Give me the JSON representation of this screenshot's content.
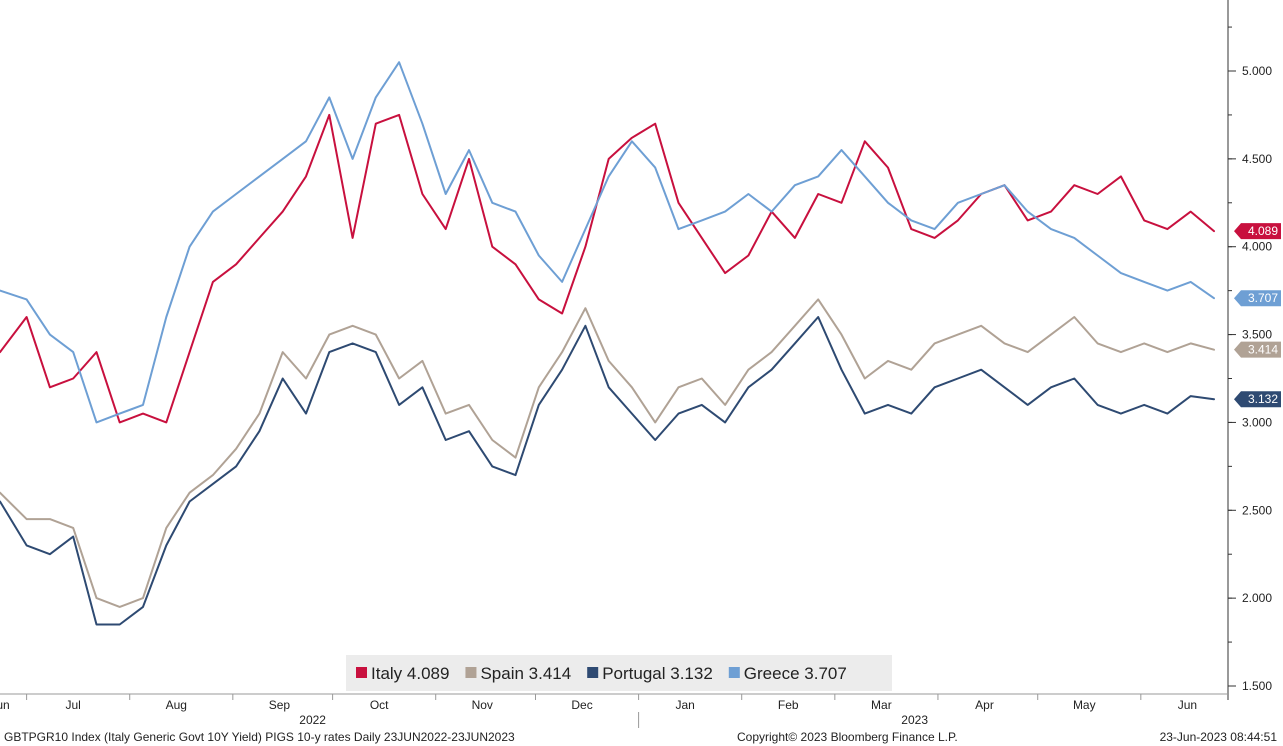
{
  "footer": {
    "description": "GBTPGR10 Index (Italy Generic Govt 10Y Yield) PIGS 10-y rates  Daily 23JUN2022-23JUN2023",
    "copyright": "Copyright© 2023 Bloomberg Finance L.P.",
    "timestamp": "23-Jun-2023 08:44:51"
  },
  "chart_data": {
    "type": "line",
    "title": "",
    "xlabel": "",
    "ylabel": "",
    "x_range": [
      "2022-06-23",
      "2023-06-23"
    ],
    "ylim": [
      1.5,
      5.3
    ],
    "y_ticks": [
      "1.500",
      "2.000",
      "2.500",
      "3.000",
      "3.500",
      "4.000",
      "4.500",
      "5.000"
    ],
    "x_ticks": [
      {
        "label": "Jun",
        "date": "2022-06-23"
      },
      {
        "label": "Jul",
        "date": "2022-07-15"
      },
      {
        "label": "Aug",
        "date": "2022-08-15"
      },
      {
        "label": "Sep",
        "date": "2022-09-15"
      },
      {
        "label": "Oct",
        "date": "2022-10-15"
      },
      {
        "label": "Nov",
        "date": "2022-11-15"
      },
      {
        "label": "Dec",
        "date": "2022-12-15"
      },
      {
        "label": "Jan",
        "date": "2023-01-15"
      },
      {
        "label": "Feb",
        "date": "2023-02-15"
      },
      {
        "label": "Mar",
        "date": "2023-03-15"
      },
      {
        "label": "Apr",
        "date": "2023-04-15"
      },
      {
        "label": "May",
        "date": "2023-05-15"
      },
      {
        "label": "Jun",
        "date": "2023-06-15"
      }
    ],
    "year_labels": [
      {
        "label": "2022",
        "date": "2022-09-25"
      },
      {
        "label": "2023",
        "date": "2023-03-25"
      }
    ],
    "year_divider_date": "2023-01-01",
    "grid": false,
    "legend_position": "bottom-center",
    "dates": [
      "2022-06-23",
      "2022-07-01",
      "2022-07-08",
      "2022-07-15",
      "2022-07-22",
      "2022-07-29",
      "2022-08-05",
      "2022-08-12",
      "2022-08-19",
      "2022-08-26",
      "2022-09-02",
      "2022-09-09",
      "2022-09-16",
      "2022-09-23",
      "2022-09-30",
      "2022-10-07",
      "2022-10-14",
      "2022-10-21",
      "2022-10-28",
      "2022-11-04",
      "2022-11-11",
      "2022-11-18",
      "2022-11-25",
      "2022-12-02",
      "2022-12-09",
      "2022-12-16",
      "2022-12-23",
      "2022-12-30",
      "2023-01-06",
      "2023-01-13",
      "2023-01-20",
      "2023-01-27",
      "2023-02-03",
      "2023-02-10",
      "2023-02-17",
      "2023-02-24",
      "2023-03-03",
      "2023-03-10",
      "2023-03-17",
      "2023-03-24",
      "2023-03-31",
      "2023-04-07",
      "2023-04-14",
      "2023-04-21",
      "2023-04-28",
      "2023-05-05",
      "2023-05-12",
      "2023-05-19",
      "2023-05-26",
      "2023-06-02",
      "2023-06-09",
      "2023-06-16",
      "2023-06-23"
    ],
    "series": [
      {
        "name": "Italy",
        "color": "#c8103e",
        "last": "4.089",
        "values": [
          3.4,
          3.6,
          3.2,
          3.25,
          3.4,
          3.0,
          3.05,
          3.0,
          3.4,
          3.8,
          3.9,
          4.05,
          4.2,
          4.4,
          4.75,
          4.05,
          4.7,
          4.75,
          4.3,
          4.1,
          4.5,
          4.0,
          3.9,
          3.7,
          3.62,
          4.0,
          4.5,
          4.62,
          4.7,
          4.25,
          4.05,
          3.85,
          3.95,
          4.2,
          4.05,
          4.3,
          4.25,
          4.6,
          4.45,
          4.1,
          4.05,
          4.15,
          4.3,
          4.35,
          4.15,
          4.2,
          4.35,
          4.3,
          4.4,
          4.15,
          4.1,
          4.2,
          4.089
        ]
      },
      {
        "name": "Spain",
        "color": "#b0a295",
        "last": "3.414",
        "values": [
          2.6,
          2.45,
          2.45,
          2.4,
          2.0,
          1.95,
          2.0,
          2.4,
          2.6,
          2.7,
          2.85,
          3.05,
          3.4,
          3.25,
          3.5,
          3.55,
          3.5,
          3.25,
          3.35,
          3.05,
          3.1,
          2.9,
          2.8,
          3.2,
          3.4,
          3.65,
          3.35,
          3.2,
          3.0,
          3.2,
          3.25,
          3.1,
          3.3,
          3.4,
          3.55,
          3.7,
          3.5,
          3.25,
          3.35,
          3.3,
          3.45,
          3.5,
          3.55,
          3.45,
          3.4,
          3.5,
          3.6,
          3.45,
          3.4,
          3.45,
          3.4,
          3.45,
          3.414
        ]
      },
      {
        "name": "Portugal",
        "color": "#2e4a72",
        "last": "3.132",
        "values": [
          2.55,
          2.3,
          2.25,
          2.35,
          1.85,
          1.85,
          1.95,
          2.3,
          2.55,
          2.65,
          2.75,
          2.95,
          3.25,
          3.05,
          3.4,
          3.45,
          3.4,
          3.1,
          3.2,
          2.9,
          2.95,
          2.75,
          2.7,
          3.1,
          3.3,
          3.55,
          3.2,
          3.05,
          2.9,
          3.05,
          3.1,
          3.0,
          3.2,
          3.3,
          3.45,
          3.6,
          3.3,
          3.05,
          3.1,
          3.05,
          3.2,
          3.25,
          3.3,
          3.2,
          3.1,
          3.2,
          3.25,
          3.1,
          3.05,
          3.1,
          3.05,
          3.15,
          3.132
        ]
      },
      {
        "name": "Greece",
        "color": "#6e9fd4",
        "last": "3.707",
        "values": [
          3.75,
          3.7,
          3.5,
          3.4,
          3.0,
          3.05,
          3.1,
          3.6,
          4.0,
          4.2,
          4.3,
          4.4,
          4.5,
          4.6,
          4.85,
          4.5,
          4.85,
          5.05,
          4.7,
          4.3,
          4.55,
          4.25,
          4.2,
          3.95,
          3.8,
          4.1,
          4.4,
          4.6,
          4.45,
          4.1,
          4.15,
          4.2,
          4.3,
          4.2,
          4.35,
          4.4,
          4.55,
          4.4,
          4.25,
          4.15,
          4.1,
          4.25,
          4.3,
          4.35,
          4.2,
          4.1,
          4.05,
          3.95,
          3.85,
          3.8,
          3.75,
          3.8,
          3.707
        ]
      }
    ]
  }
}
